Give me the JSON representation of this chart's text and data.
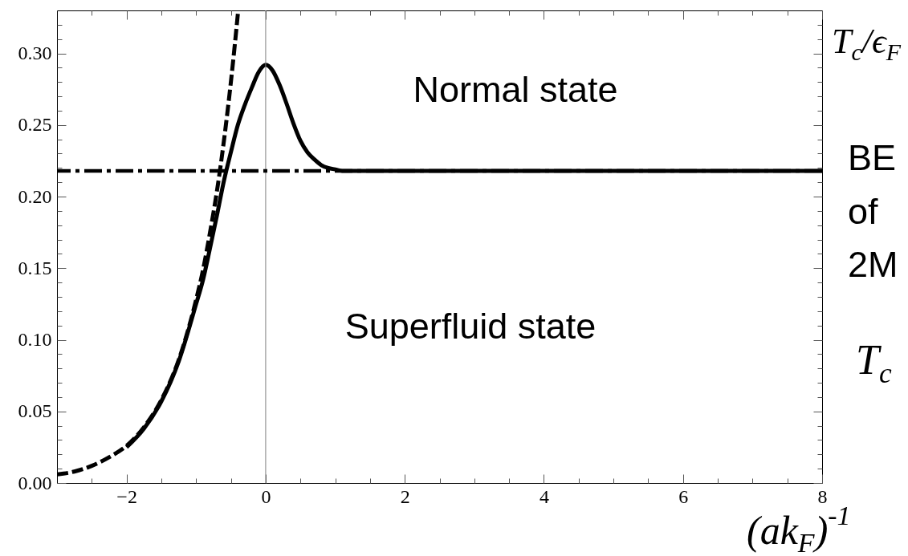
{
  "chart_data": {
    "type": "line",
    "xlabel": "(ak$_{F}$)$^{-1}$",
    "ylabel": "T$_{c}$/ϵ$_{F}$",
    "xlim": [
      -3,
      8
    ],
    "ylim": [
      0,
      0.33
    ],
    "xticks": [
      {
        "value": -2.5,
        "label": null
      },
      -2,
      {
        "value": -1.5,
        "label": null
      },
      {
        "value": -1,
        "label": null
      },
      {
        "value": -0.5,
        "label": null
      },
      0,
      {
        "value": 0.5,
        "label": null
      },
      {
        "value": 1,
        "label": null
      },
      {
        "value": 1.5,
        "label": null
      },
      2,
      {
        "value": 2.5,
        "label": null
      },
      {
        "value": 3,
        "label": null
      },
      {
        "value": 3.5,
        "label": null
      },
      4,
      {
        "value": 4.5,
        "label": null
      },
      {
        "value": 5,
        "label": null
      },
      {
        "value": 5.5,
        "label": null
      },
      6,
      {
        "value": 6.5,
        "label": null
      },
      {
        "value": 7,
        "label": null
      },
      {
        "value": 7.5,
        "label": null
      },
      8
    ],
    "yticks": [
      {
        "value": 0,
        "label": "0.00"
      },
      {
        "value": 0.01,
        "label": null
      },
      {
        "value": 0.02,
        "label": null
      },
      {
        "value": 0.03,
        "label": null
      },
      {
        "value": 0.04,
        "label": null
      },
      {
        "value": 0.05,
        "label": "0.05"
      },
      {
        "value": 0.06,
        "label": null
      },
      {
        "value": 0.07,
        "label": null
      },
      {
        "value": 0.08,
        "label": null
      },
      {
        "value": 0.09,
        "label": null
      },
      {
        "value": 0.1,
        "label": "0.10"
      },
      {
        "value": 0.11,
        "label": null
      },
      {
        "value": 0.12,
        "label": null
      },
      {
        "value": 0.13,
        "label": null
      },
      {
        "value": 0.14,
        "label": null
      },
      {
        "value": 0.15,
        "label": "0.15"
      },
      {
        "value": 0.16,
        "label": null
      },
      {
        "value": 0.17,
        "label": null
      },
      {
        "value": 0.18,
        "label": null
      },
      {
        "value": 0.19,
        "label": null
      },
      {
        "value": 0.2,
        "label": "0.20"
      },
      {
        "value": 0.21,
        "label": null
      },
      {
        "value": 0.22,
        "label": null
      },
      {
        "value": 0.23,
        "label": null
      },
      {
        "value": 0.24,
        "label": null
      },
      {
        "value": 0.25,
        "label": "0.25"
      },
      {
        "value": 0.26,
        "label": null
      },
      {
        "value": 0.27,
        "label": null
      },
      {
        "value": 0.28,
        "label": null
      },
      {
        "value": 0.29,
        "label": null
      },
      {
        "value": 0.3,
        "label": "0.30"
      },
      {
        "value": 0.31,
        "label": null
      },
      {
        "value": 0.32,
        "label": null
      }
    ],
    "series": [
      {
        "color": "#000000",
        "line_style": "solid",
        "x": [
          -2,
          -1.75,
          -1.5,
          -1.25,
          -1,
          -0.9,
          -0.8,
          -0.7,
          -0.6,
          -0.5,
          -0.4,
          -0.3,
          -0.2,
          -0.1,
          0,
          0.1,
          0.2,
          0.3,
          0.4,
          0.5,
          0.6,
          0.7,
          0.8,
          0.9,
          1,
          1.1,
          1.5,
          2,
          4,
          6,
          8
        ],
        "values": [
          0.025,
          0.038,
          0.057,
          0.085,
          0.125,
          0.142,
          0.164,
          0.187,
          0.211,
          0.231,
          0.25,
          0.264,
          0.276,
          0.287,
          0.292,
          0.288,
          0.278,
          0.265,
          0.251,
          0.239,
          0.231,
          0.226,
          0.222,
          0.22,
          0.219,
          0.218,
          0.218,
          0.218,
          0.218,
          0.218,
          0.218
        ]
      },
      {
        "color": "#000000",
        "line_style": "dashed",
        "x": [
          -3,
          -2.75,
          -2.5,
          -2.25,
          -2,
          -1.75,
          -1.5,
          -1.25,
          -1,
          -0.9,
          -0.8,
          -0.7,
          -0.6,
          -0.5,
          -0.45,
          -0.395
        ],
        "values": [
          0.006,
          0.008,
          0.012,
          0.018,
          0.026,
          0.039,
          0.058,
          0.086,
          0.128,
          0.149,
          0.175,
          0.204,
          0.239,
          0.28,
          0.303,
          0.33
        ]
      }
    ],
    "ref_lines": [
      {
        "axis": "x",
        "value": 0,
        "color": "#808080"
      },
      {
        "axis": "y",
        "value": 0.218,
        "color": "#000000",
        "line_style": "dashdot"
      }
    ],
    "annotations": [
      "Normal state",
      "Superfluid state",
      "BE",
      "of",
      "2M",
      "T$_{c}$"
    ]
  }
}
